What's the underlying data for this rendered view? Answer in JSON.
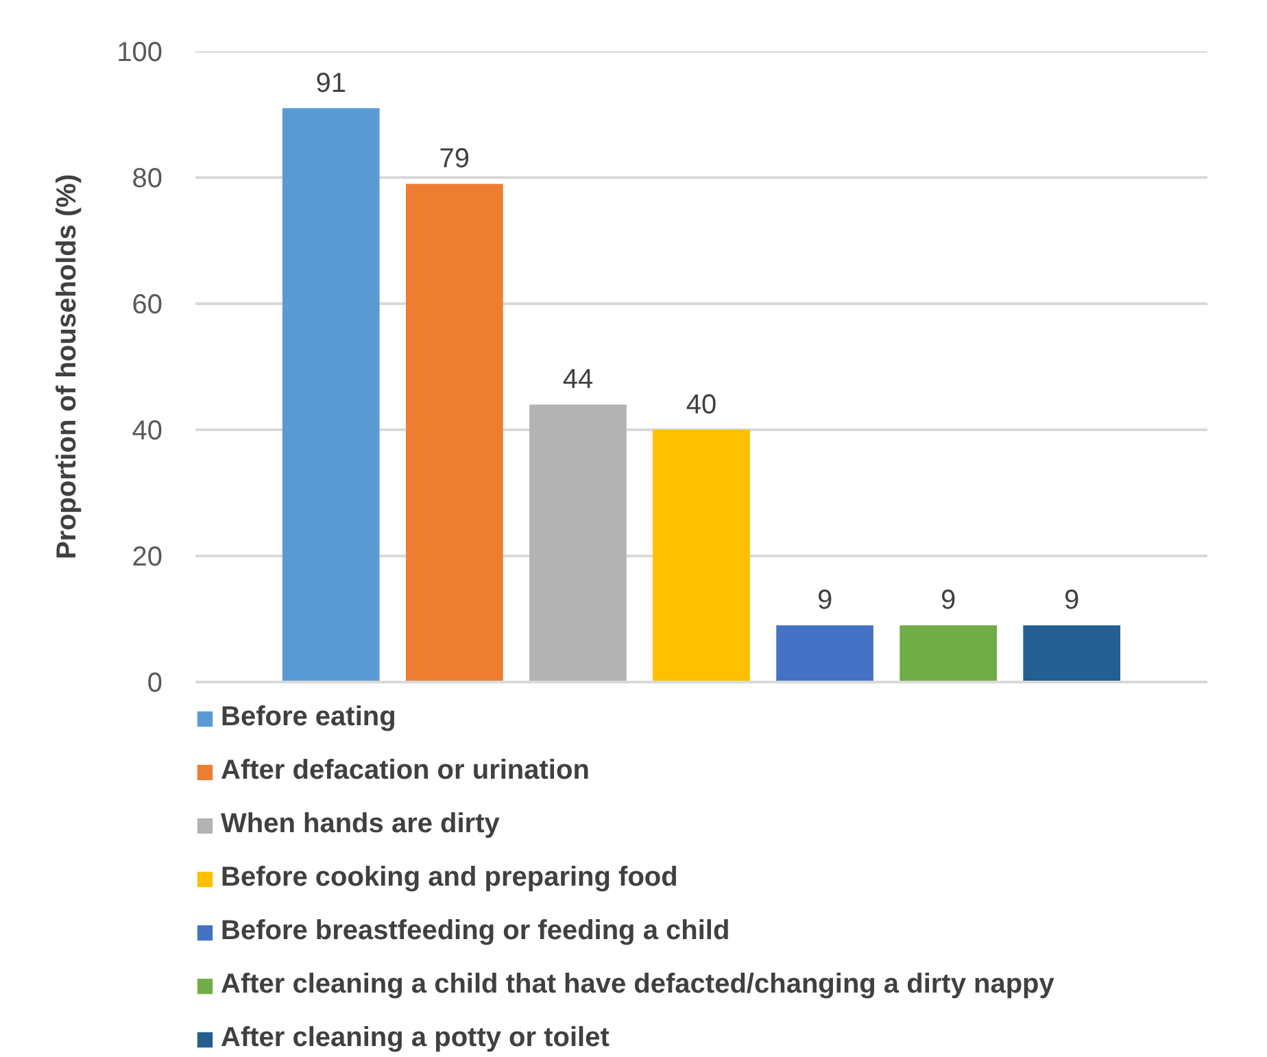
{
  "chart_data": {
    "type": "bar",
    "ylabel": "Proportion of households (%)",
    "categories": [
      null
    ],
    "series": [
      {
        "name": "Before eating",
        "color": "#5b9bd5",
        "values": [
          91
        ]
      },
      {
        "name": "After defacation or urination",
        "color": "#ed7d31",
        "values": [
          79
        ]
      },
      {
        "name": "When hands are dirty",
        "color": "#b3b3b3",
        "values": [
          44
        ]
      },
      {
        "name": "Before cooking and preparing food",
        "color": "#ffc000",
        "values": [
          40
        ]
      },
      {
        "name": "Before breastfeeding or feeding a child",
        "color": "#4472c4",
        "values": [
          9
        ]
      },
      {
        "name": "After cleaning a child that have defacted/changing a dirty nappy",
        "color": "#70ad47",
        "values": [
          9
        ]
      },
      {
        "name": "After cleaning a potty or toilet",
        "color": "#255e91",
        "values": [
          9
        ]
      }
    ],
    "ylim": [
      0,
      100
    ],
    "yticks": [
      0,
      20,
      40,
      60,
      80,
      100
    ],
    "grid": "y",
    "legend": "bottom",
    "data_labels": true
  }
}
